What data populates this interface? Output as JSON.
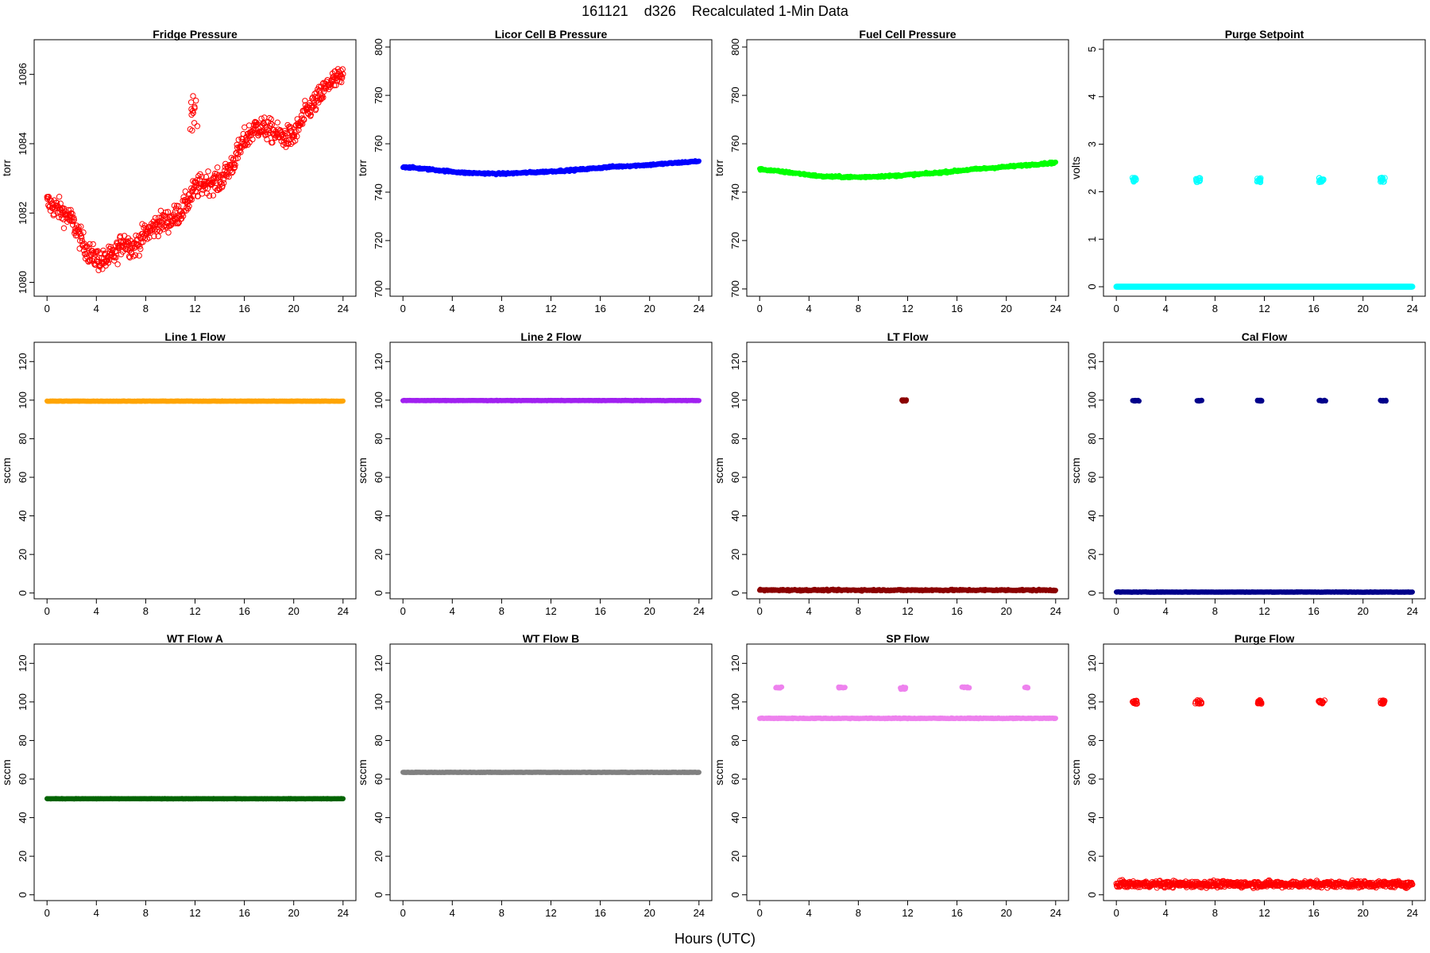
{
  "figure": {
    "title": "161121    d326    Recalculated 1-Min Data",
    "xlabel": "Hours (UTC)"
  },
  "chart_data": [
    {
      "type": "scatter",
      "title": "Fridge Pressure",
      "ylabel": "torr",
      "xlim": [
        0,
        24
      ],
      "ylim": [
        1079.6,
        1087.0
      ],
      "xticks": [
        0,
        4,
        8,
        12,
        16,
        20,
        24
      ],
      "yticks": [
        1080,
        1082,
        1084,
        1086
      ],
      "grid": false,
      "marker": "open-circle",
      "color": "#ff0000",
      "series": [
        {
          "profile": [
            [
              0,
              1082.3
            ],
            [
              1,
              1082.1
            ],
            [
              2,
              1081.8
            ],
            [
              2.8,
              1081.2
            ],
            [
              3.5,
              1080.8
            ],
            [
              4.5,
              1080.6
            ],
            [
              5.5,
              1080.8
            ],
            [
              6.2,
              1081.2
            ],
            [
              7,
              1081.0
            ],
            [
              8,
              1081.4
            ],
            [
              9,
              1081.7
            ],
            [
              10,
              1081.8
            ],
            [
              11,
              1082.1
            ],
            [
              12,
              1082.7
            ],
            [
              13,
              1082.9
            ],
            [
              14,
              1082.9
            ],
            [
              15,
              1083.4
            ],
            [
              16,
              1084.1
            ],
            [
              17,
              1084.5
            ],
            [
              18,
              1084.4
            ],
            [
              19,
              1084.2
            ],
            [
              20,
              1084.2
            ],
            [
              21,
              1084.9
            ],
            [
              22,
              1085.3
            ],
            [
              23,
              1085.8
            ],
            [
              24,
              1085.9
            ]
          ],
          "noise": 0.32,
          "clusters": [
            {
              "x": [
                11.6,
                12.2
              ],
              "y": [
                1084.3,
                1085.5
              ]
            }
          ]
        }
      ]
    },
    {
      "type": "scatter",
      "title": "Licor Cell B Pressure",
      "ylabel": "torr",
      "xlim": [
        0,
        24
      ],
      "ylim": [
        697,
        803
      ],
      "xticks": [
        0,
        4,
        8,
        12,
        16,
        20,
        24
      ],
      "yticks": [
        700,
        720,
        740,
        760,
        780,
        800
      ],
      "grid": false,
      "marker": "filled-circle",
      "color": "#0000ff",
      "series": [
        {
          "profile": [
            [
              0,
              750.5
            ],
            [
              3,
              749
            ],
            [
              5,
              748
            ],
            [
              8,
              747.6
            ],
            [
              11,
              748.3
            ],
            [
              14,
              749.2
            ],
            [
              17,
              750.5
            ],
            [
              20,
              751.3
            ],
            [
              24,
              752.8
            ]
          ],
          "noise": 0.4
        }
      ]
    },
    {
      "type": "scatter",
      "title": "Fuel Cell Pressure",
      "ylabel": "torr",
      "xlim": [
        0,
        24
      ],
      "ylim": [
        697,
        803
      ],
      "xticks": [
        0,
        4,
        8,
        12,
        16,
        20,
        24
      ],
      "yticks": [
        700,
        720,
        740,
        760,
        780,
        800
      ],
      "grid": false,
      "marker": "filled-circle",
      "color": "#00ff00",
      "series": [
        {
          "profile": [
            [
              0,
              749.5
            ],
            [
              3,
              747.8
            ],
            [
              5,
              746.5
            ],
            [
              8,
              746.2
            ],
            [
              11,
              746.8
            ],
            [
              14,
              747.8
            ],
            [
              17,
              749.3
            ],
            [
              20,
              750.5
            ],
            [
              24,
              752.2
            ]
          ],
          "noise": 0.4
        }
      ]
    },
    {
      "type": "scatter",
      "title": "Purge Setpoint",
      "ylabel": "volts",
      "xlim": [
        0,
        24
      ],
      "ylim": [
        -0.2,
        5.2
      ],
      "xticks": [
        0,
        4,
        8,
        12,
        16,
        20,
        24
      ],
      "yticks": [
        0,
        1,
        2,
        3,
        4,
        5
      ],
      "grid": false,
      "marker": "open-circle",
      "color": "#00ffff",
      "series": [
        {
          "baseline": 0.0,
          "noise": 0.0,
          "clusters": [
            {
              "x": [
                1.3,
                1.6
              ],
              "y": [
                2.2,
                2.3
              ]
            },
            {
              "x": [
                6.4,
                6.8
              ],
              "y": [
                2.2,
                2.3
              ]
            },
            {
              "x": [
                11.4,
                11.7
              ],
              "y": [
                2.2,
                2.3
              ]
            },
            {
              "x": [
                16.4,
                16.8
              ],
              "y": [
                2.2,
                2.3
              ]
            },
            {
              "x": [
                21.4,
                21.8
              ],
              "y": [
                2.2,
                2.3
              ]
            }
          ]
        }
      ]
    },
    {
      "type": "scatter",
      "title": "Line 1 Flow",
      "ylabel": "sccm",
      "xlim": [
        0,
        24
      ],
      "ylim": [
        -3,
        130
      ],
      "xticks": [
        0,
        4,
        8,
        12,
        16,
        20,
        24
      ],
      "yticks": [
        0,
        20,
        40,
        60,
        80,
        100,
        120
      ],
      "grid": false,
      "marker": "filled-circle",
      "color": "#ffa500",
      "series": [
        {
          "baseline": 99.5,
          "noise": 0.1
        }
      ]
    },
    {
      "type": "scatter",
      "title": "Line 2 Flow",
      "ylabel": "sccm",
      "xlim": [
        0,
        24
      ],
      "ylim": [
        -3,
        130
      ],
      "xticks": [
        0,
        4,
        8,
        12,
        16,
        20,
        24
      ],
      "yticks": [
        0,
        20,
        40,
        60,
        80,
        100,
        120
      ],
      "grid": false,
      "marker": "filled-circle",
      "color": "#a020f0",
      "series": [
        {
          "baseline": 99.8,
          "noise": 0.1
        }
      ]
    },
    {
      "type": "scatter",
      "title": "LT Flow",
      "ylabel": "sccm",
      "xlim": [
        0,
        24
      ],
      "ylim": [
        -3,
        130
      ],
      "xticks": [
        0,
        4,
        8,
        12,
        16,
        20,
        24
      ],
      "yticks": [
        0,
        20,
        40,
        60,
        80,
        100,
        120
      ],
      "grid": false,
      "marker": "filled-circle",
      "color": "#8b0000",
      "series": [
        {
          "baseline": 1.5,
          "noise": 0.4,
          "clusters": [
            {
              "x": [
                11.5,
                11.9
              ],
              "y": [
                99.4,
                100.2
              ]
            }
          ]
        }
      ]
    },
    {
      "type": "scatter",
      "title": "Cal Flow",
      "ylabel": "sccm",
      "xlim": [
        0,
        24
      ],
      "ylim": [
        -3,
        130
      ],
      "xticks": [
        0,
        4,
        8,
        12,
        16,
        20,
        24
      ],
      "yticks": [
        0,
        20,
        40,
        60,
        80,
        100,
        120
      ],
      "grid": false,
      "marker": "filled-circle",
      "color": "#00008b",
      "series": [
        {
          "baseline": 0.5,
          "noise": 0.1,
          "clusters": [
            {
              "x": [
                1.3,
                1.9
              ],
              "y": [
                99.5,
                100.0
              ]
            },
            {
              "x": [
                6.4,
                7.0
              ],
              "y": [
                99.5,
                100.0
              ]
            },
            {
              "x": [
                11.4,
                11.8
              ],
              "y": [
                99.5,
                100.0
              ]
            },
            {
              "x": [
                16.4,
                17.0
              ],
              "y": [
                99.5,
                100.0
              ]
            },
            {
              "x": [
                21.4,
                21.9
              ],
              "y": [
                99.5,
                100.0
              ]
            }
          ]
        }
      ]
    },
    {
      "type": "scatter",
      "title": "WT Flow A",
      "ylabel": "sccm",
      "xlim": [
        0,
        24
      ],
      "ylim": [
        -3,
        130
      ],
      "xticks": [
        0,
        4,
        8,
        12,
        16,
        20,
        24
      ],
      "yticks": [
        0,
        20,
        40,
        60,
        80,
        100,
        120
      ],
      "grid": false,
      "marker": "filled-circle",
      "color": "#006400",
      "series": [
        {
          "baseline": 49.8,
          "noise": 0.1
        }
      ]
    },
    {
      "type": "scatter",
      "title": "WT Flow B",
      "ylabel": "sccm",
      "xlim": [
        0,
        24
      ],
      "ylim": [
        -3,
        130
      ],
      "xticks": [
        0,
        4,
        8,
        12,
        16,
        20,
        24
      ],
      "yticks": [
        0,
        20,
        40,
        60,
        80,
        100,
        120
      ],
      "grid": false,
      "marker": "filled-circle",
      "color": "#808080",
      "series": [
        {
          "baseline": 63.5,
          "noise": 0.1
        }
      ]
    },
    {
      "type": "scatter",
      "title": "SP Flow",
      "ylabel": "sccm",
      "xlim": [
        0,
        24
      ],
      "ylim": [
        -3,
        130
      ],
      "xticks": [
        0,
        4,
        8,
        12,
        16,
        20,
        24
      ],
      "yticks": [
        0,
        20,
        40,
        60,
        80,
        100,
        120
      ],
      "grid": false,
      "marker": "filled-circle",
      "color": "#ee82ee",
      "series": [
        {
          "baseline": 91.5,
          "noise": 0.2,
          "clusters": [
            {
              "x": [
                1.3,
                1.8
              ],
              "y": [
                107.2,
                107.8
              ]
            },
            {
              "x": [
                6.4,
                7.0
              ],
              "y": [
                107.2,
                107.8
              ]
            },
            {
              "x": [
                11.4,
                11.9
              ],
              "y": [
                106.5,
                107.8
              ]
            },
            {
              "x": [
                16.4,
                17.0
              ],
              "y": [
                107.2,
                107.8
              ]
            },
            {
              "x": [
                21.4,
                21.8
              ],
              "y": [
                107.2,
                107.8
              ]
            }
          ]
        }
      ]
    },
    {
      "type": "scatter",
      "title": "Purge Flow",
      "ylabel": "sccm",
      "xlim": [
        0,
        24
      ],
      "ylim": [
        -3,
        130
      ],
      "xticks": [
        0,
        4,
        8,
        12,
        16,
        20,
        24
      ],
      "yticks": [
        0,
        20,
        40,
        60,
        80,
        100,
        120
      ],
      "grid": false,
      "marker": "open-circle",
      "color": "#ff0000",
      "series": [
        {
          "baseline": 5.5,
          "noise": 1.6,
          "clusters": [
            {
              "x": [
                1.3,
                1.7
              ],
              "y": [
                99.0,
                101.0
              ]
            },
            {
              "x": [
                6.4,
                6.9
              ],
              "y": [
                99.0,
                101.0
              ]
            },
            {
              "x": [
                11.4,
                11.8
              ],
              "y": [
                99.0,
                101.0
              ]
            },
            {
              "x": [
                16.4,
                16.9
              ],
              "y": [
                99.0,
                101.0
              ]
            },
            {
              "x": [
                21.4,
                21.8
              ],
              "y": [
                99.0,
                101.0
              ]
            }
          ]
        }
      ]
    }
  ]
}
